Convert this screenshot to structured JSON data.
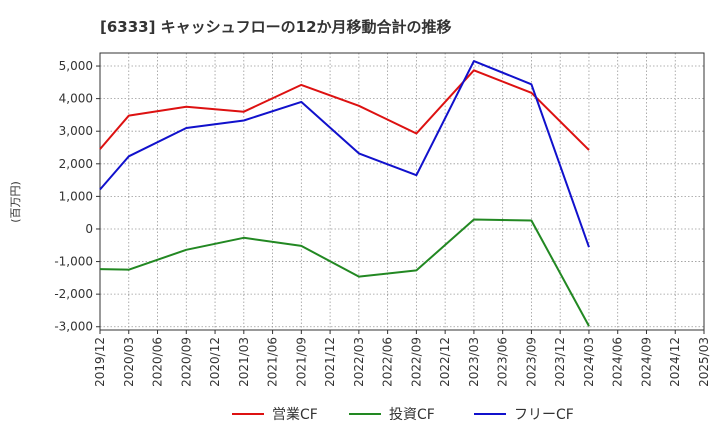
{
  "chart_data": {
    "type": "line",
    "title": "[6333]  キャッシュフローの12か月移動合計の推移",
    "xlabel": "",
    "ylabel": "(百万円)",
    "ylim": [
      -3100,
      5400
    ],
    "yticks": [
      -3000,
      -2000,
      -1000,
      0,
      1000,
      2000,
      3000,
      4000,
      5000
    ],
    "ytick_labels": [
      "-3,000",
      "-2,000",
      "-1,000",
      "0",
      "1,000",
      "2,000",
      "3,000",
      "4,000",
      "5,000"
    ],
    "x_ticks": [
      "2019/12",
      "2020/03",
      "2020/06",
      "2020/09",
      "2020/12",
      "2021/03",
      "2021/06",
      "2021/09",
      "2021/12",
      "2022/03",
      "2022/06",
      "2022/09",
      "2022/12",
      "2023/03",
      "2023/06",
      "2023/09",
      "2023/12",
      "2024/03",
      "2024/06",
      "2024/09",
      "2024/12",
      "2025/03"
    ],
    "grid": true,
    "legend_position": "bottom",
    "series": [
      {
        "name": "営業CF",
        "color": "#dd1111",
        "x": [
          "2019/12",
          "2020/03",
          "2020/09",
          "2021/03",
          "2021/09",
          "2022/03",
          "2022/09",
          "2023/03",
          "2023/09",
          "2024/03"
        ],
        "values": [
          2450,
          3480,
          3750,
          3600,
          4420,
          3780,
          2930,
          4870,
          4180,
          2420
        ]
      },
      {
        "name": "投資CF",
        "color": "#228822",
        "x": [
          "2019/12",
          "2020/03",
          "2020/09",
          "2021/03",
          "2021/09",
          "2022/03",
          "2022/09",
          "2023/03",
          "2023/09",
          "2024/03"
        ],
        "values": [
          -1230,
          -1250,
          -640,
          -270,
          -520,
          -1460,
          -1270,
          290,
          260,
          -2980
        ]
      },
      {
        "name": "フリーCF",
        "color": "#1111cc",
        "x": [
          "2019/12",
          "2020/03",
          "2020/09",
          "2021/03",
          "2021/09",
          "2022/03",
          "2022/09",
          "2023/03",
          "2023/09",
          "2024/03"
        ],
        "values": [
          1210,
          2230,
          3100,
          3330,
          3900,
          2320,
          1650,
          5150,
          4440,
          -560
        ]
      }
    ]
  }
}
